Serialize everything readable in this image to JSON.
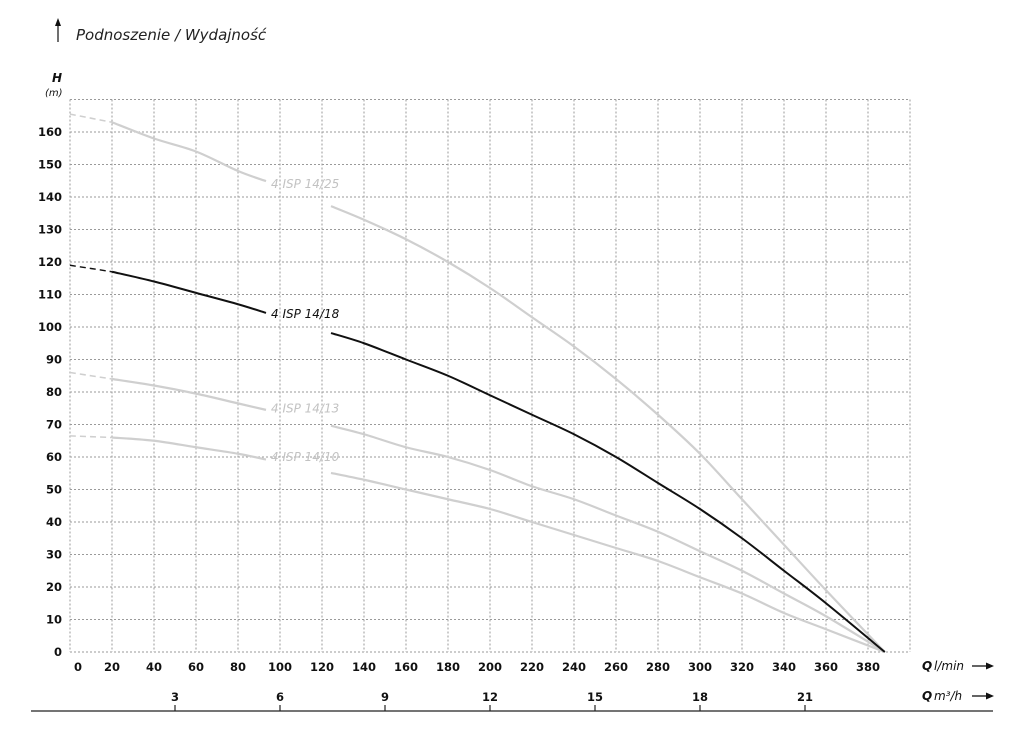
{
  "header": {
    "title": "Podnoszenie / Wydajność"
  },
  "axes": {
    "y_label": "H",
    "y_unit": "(m)",
    "x_label_q": "Q",
    "x_unit_lmin": "l/min",
    "x2_label_q": "Q",
    "x2_unit_m3h": "m³/h"
  },
  "colors": {
    "highlight": "#111111",
    "muted": "#cfcfcf",
    "muted_label": "#c2c2c2",
    "grid": "#9a9a9a"
  },
  "chart_data": {
    "type": "line",
    "title": "Podnoszenie / Wydajność",
    "xlabel": "Q l/min",
    "x2label": "Q m³/h",
    "ylabel": "H (m)",
    "xlim": [
      0,
      400
    ],
    "ylim": [
      0,
      170
    ],
    "grid": true,
    "x_ticks": [
      0,
      20,
      40,
      60,
      80,
      100,
      120,
      140,
      160,
      180,
      200,
      220,
      240,
      260,
      280,
      300,
      320,
      340,
      360,
      380
    ],
    "y_ticks": [
      0,
      10,
      20,
      30,
      40,
      50,
      60,
      70,
      80,
      90,
      100,
      110,
      120,
      130,
      140,
      150,
      160
    ],
    "x2_ticks": [
      3,
      6,
      9,
      12,
      15,
      18,
      21
    ],
    "x": [
      0,
      20,
      40,
      60,
      80,
      110,
      140,
      160,
      180,
      200,
      220,
      240,
      260,
      280,
      300,
      320,
      340,
      360,
      388
    ],
    "series": [
      {
        "name": "4 ISP 14/25",
        "highlight": false,
        "label_at": [
          110,
          144
        ],
        "values": [
          165.5,
          163,
          158,
          154,
          148,
          141,
          133,
          127,
          120,
          112,
          103,
          94,
          84,
          73,
          61,
          47,
          33,
          19,
          0
        ]
      },
      {
        "name": "4 ISP 14/18",
        "highlight": true,
        "label_at": [
          110,
          104
        ],
        "values": [
          119,
          117,
          114,
          110.5,
          107,
          101,
          95,
          90,
          85,
          79,
          73,
          67,
          60,
          52,
          44,
          35,
          25,
          15,
          0
        ]
      },
      {
        "name": "4 ISP 14/13",
        "highlight": false,
        "label_at": [
          110,
          75
        ],
        "values": [
          86,
          84,
          82,
          79.5,
          76.5,
          72,
          67,
          63,
          60,
          56,
          51,
          47,
          42,
          37,
          31,
          25,
          18,
          11,
          0
        ]
      },
      {
        "name": "4 ISP 14/10",
        "highlight": false,
        "label_at": [
          110,
          60
        ],
        "values": [
          66.5,
          66,
          65,
          63,
          61,
          57,
          53,
          50,
          47,
          44,
          40,
          36,
          32,
          28,
          23,
          18,
          12,
          7,
          0
        ]
      }
    ],
    "dashed_segment_until_x": 20
  }
}
